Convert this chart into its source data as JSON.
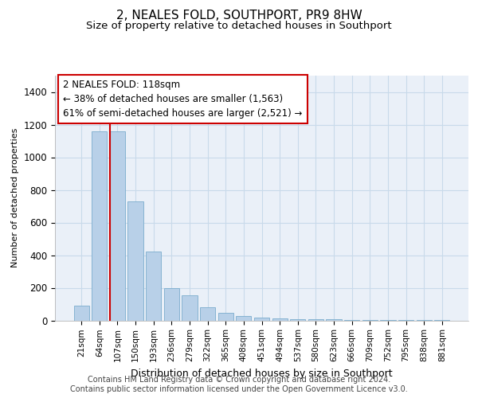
{
  "title": "2, NEALES FOLD, SOUTHPORT, PR9 8HW",
  "subtitle": "Size of property relative to detached houses in Southport",
  "xlabel": "Distribution of detached houses by size in Southport",
  "ylabel": "Number of detached properties",
  "bar_labels": [
    "21sqm",
    "64sqm",
    "107sqm",
    "150sqm",
    "193sqm",
    "236sqm",
    "279sqm",
    "322sqm",
    "365sqm",
    "408sqm",
    "451sqm",
    "494sqm",
    "537sqm",
    "580sqm",
    "623sqm",
    "666sqm",
    "709sqm",
    "752sqm",
    "795sqm",
    "838sqm",
    "881sqm"
  ],
  "bar_values": [
    90,
    1160,
    1160,
    730,
    420,
    200,
    155,
    80,
    45,
    25,
    18,
    12,
    8,
    6,
    5,
    4,
    3,
    2,
    1,
    1,
    1
  ],
  "bar_color": "#b8d0e8",
  "bar_edge_color": "#7aaccd",
  "grid_color": "#c8daea",
  "background_color": "#eaf0f8",
  "annotation_box_text": "2 NEALES FOLD: 118sqm\n← 38% of detached houses are smaller (1,563)\n61% of semi-detached houses are larger (2,521) →",
  "annotation_box_color": "#cc0000",
  "red_line_x": 1.57,
  "ylim": [
    0,
    1500
  ],
  "yticks": [
    0,
    200,
    400,
    600,
    800,
    1000,
    1200,
    1400
  ],
  "footer_text": "Contains HM Land Registry data © Crown copyright and database right 2024.\nContains public sector information licensed under the Open Government Licence v3.0.",
  "title_fontsize": 11,
  "subtitle_fontsize": 9.5,
  "annotation_fontsize": 8.5,
  "ylabel_fontsize": 8,
  "xlabel_fontsize": 9,
  "footer_fontsize": 7
}
